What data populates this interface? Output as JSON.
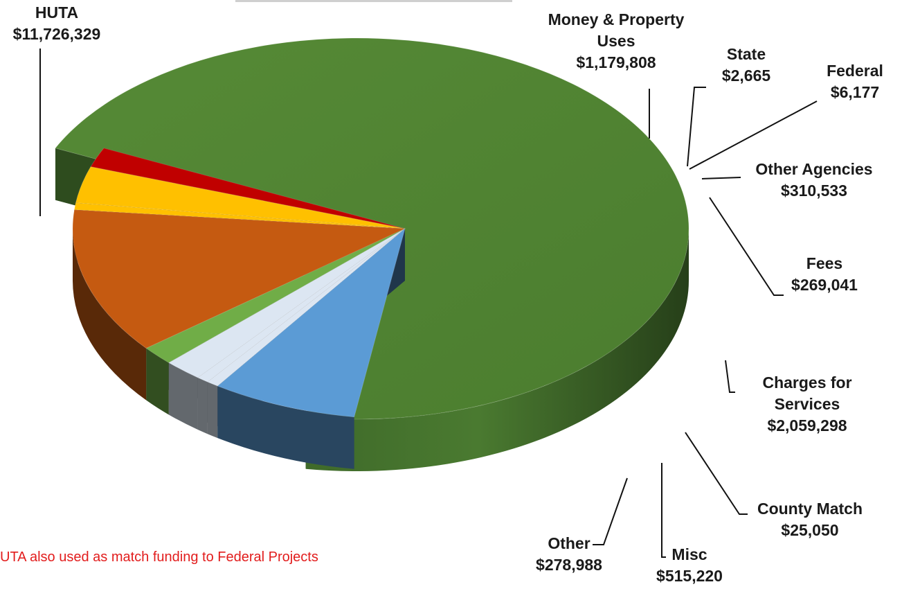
{
  "chart_data": {
    "type": "pie",
    "title": "",
    "slices": [
      {
        "name": "HUTA",
        "label_lines": [
          "HUTA",
          "$11,726,329"
        ],
        "value": 11726329,
        "color": "#548235"
      },
      {
        "name": "Money & Property Uses",
        "label_lines": [
          "Money & Property",
          "Uses",
          "$1,179,808"
        ],
        "value": 1179808,
        "color": "#5b9bd5"
      },
      {
        "name": "State",
        "label_lines": [
          "State",
          "$2,665"
        ],
        "value": 2665,
        "color": "#dce6f2"
      },
      {
        "name": "Federal",
        "label_lines": [
          "Federal",
          "$6,177"
        ],
        "value": 6177,
        "color": "#dce6f2"
      },
      {
        "name": "Other Agencies",
        "label_lines": [
          "Other Agencies",
          "$310,533"
        ],
        "value": 310533,
        "color": "#dce6f2"
      },
      {
        "name": "Fees",
        "label_lines": [
          "Fees",
          "$269,041"
        ],
        "value": 269041,
        "color": "#70ad47"
      },
      {
        "name": "Charges for Services",
        "label_lines": [
          "Charges for",
          "Services",
          "$2,059,298"
        ],
        "value": 2059298,
        "color": "#c55a11"
      },
      {
        "name": "County Match",
        "label_lines": [
          "County Match",
          "$25,050"
        ],
        "value": 25050,
        "color": "#ffc000"
      },
      {
        "name": "Misc",
        "label_lines": [
          "Misc",
          "$515,220"
        ],
        "value": 515220,
        "color": "#ffc000"
      },
      {
        "name": "Other",
        "label_lines": [
          "Other",
          "$278,988"
        ],
        "value": 278988,
        "color": "#c00000"
      }
    ],
    "style": "3d-exploded-pie"
  },
  "footnote": "UTA also used as match funding to Federal Projects"
}
